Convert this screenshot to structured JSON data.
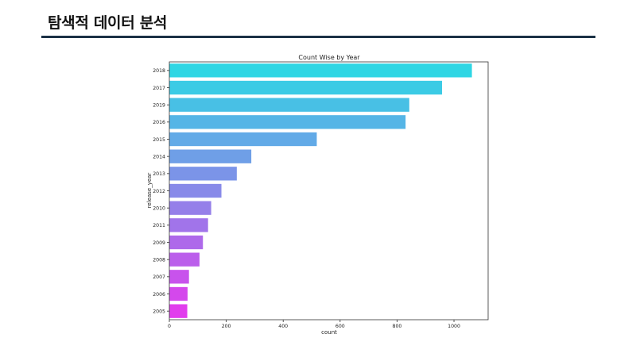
{
  "slide": {
    "title": "탐색적 데이터 분석"
  },
  "colors": {
    "title_rule": "#1b3145",
    "gradient_start": "#2fd6e4",
    "gradient_end": "#e13ded"
  },
  "chart_data": {
    "type": "bar",
    "orientation": "horizontal",
    "title": "Count Wise by Year",
    "xlabel": "count",
    "ylabel": "release_year",
    "categories": [
      "2018",
      "2017",
      "2019",
      "2016",
      "2015",
      "2014",
      "2013",
      "2012",
      "2010",
      "2011",
      "2009",
      "2008",
      "2007",
      "2006",
      "2005"
    ],
    "values": [
      1063,
      958,
      843,
      830,
      518,
      288,
      237,
      183,
      147,
      136,
      118,
      106,
      69,
      64,
      63
    ],
    "xlim": [
      0,
      1120
    ],
    "xticks": [
      0,
      200,
      400,
      600,
      800,
      1000
    ],
    "grid": false,
    "legend": "none",
    "palette": "cool"
  }
}
